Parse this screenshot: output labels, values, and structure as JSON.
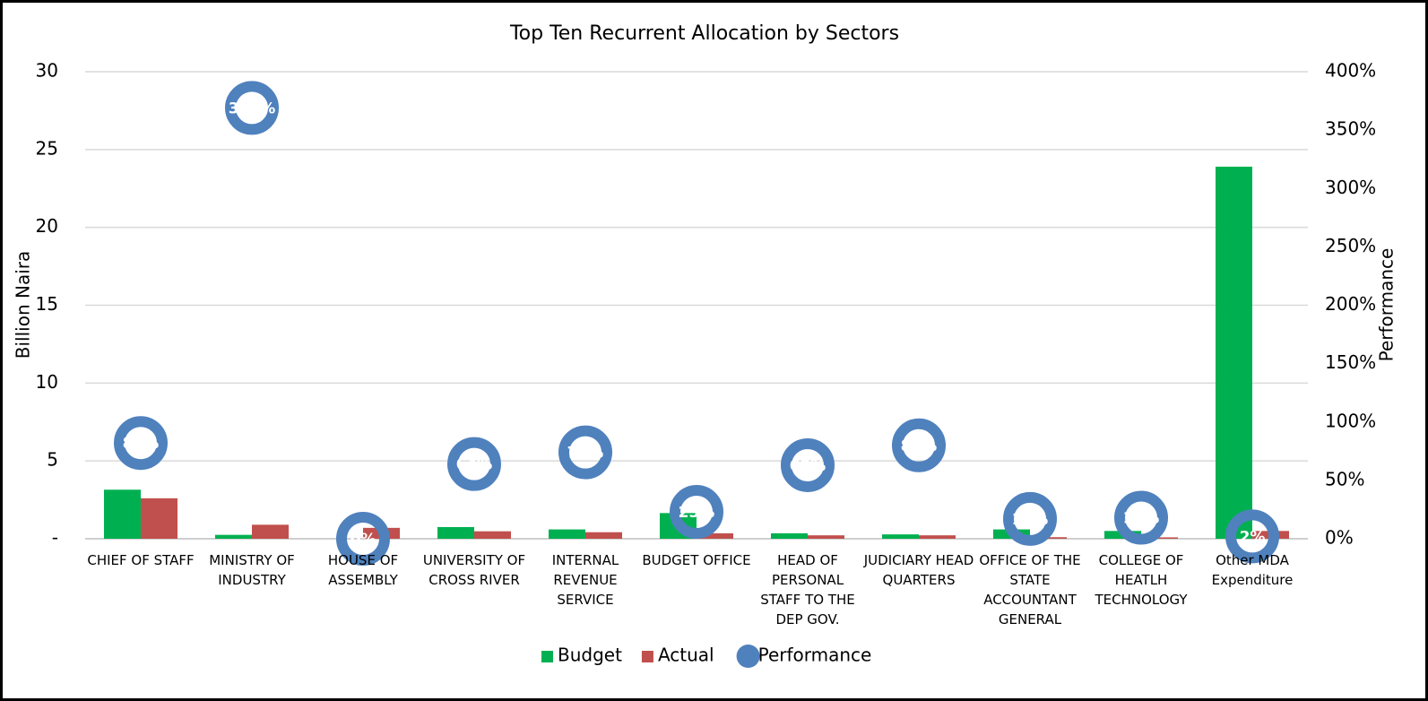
{
  "chart_data": {
    "type": "bar",
    "title": "Top Ten Recurrent Allocation by Sectors",
    "y_label": "Billion Naira",
    "y2_label": "Performance",
    "categories": [
      "CHIEF OF STAFF",
      "MINISTRY OF INDUSTRY",
      "HOUSE OF ASSEMBLY",
      "UNIVERSITY OF CROSS RIVER",
      "INTERNAL REVENUE SERVICE",
      "BUDGET OFFICE",
      "HEAD OF PERSONAL STAFF TO THE DEP GOV.",
      "JUDICIARY HEAD QUARTERS",
      "OFFICE OF THE STATE ACCOUNTANT GENERAL",
      "COLLEGE OF HEATLH TECHNOLOGY",
      "Other MDA Expenditure"
    ],
    "series": [
      {
        "name": "Budget",
        "color": "#00b050",
        "type": "bar",
        "values": [
          3.15,
          0.25,
          0,
          0.75,
          0.6,
          1.65,
          0.35,
          0.28,
          0.6,
          0.5,
          23.9
        ]
      },
      {
        "name": "Actual",
        "color": "#c0504d",
        "type": "bar",
        "values": [
          2.6,
          0.9,
          0.7,
          0.48,
          0.42,
          0.35,
          0.22,
          0.22,
          0.1,
          0.09,
          0.5
        ]
      },
      {
        "name": "Performance",
        "color": "#4f81bd",
        "type": "scatter",
        "axis": "y2",
        "values": [
          82,
          369,
          0,
          64,
          74,
          23,
          63,
          80,
          17,
          18,
          2
        ],
        "value_labels": [
          "82%",
          "369%",
          "0%",
          "64%",
          "74%",
          "23%",
          "63%",
          "80%",
          "17%",
          "18%",
          "2%"
        ]
      }
    ],
    "ylim": [
      0,
      30
    ],
    "yticks": [
      {
        "value": 0,
        "label": "-"
      },
      5,
      10,
      15,
      20,
      25,
      30
    ],
    "y2lim": [
      0,
      400
    ],
    "y2ticks": [
      {
        "value": 0,
        "label": "0%"
      },
      {
        "value": 50,
        "label": "50%"
      },
      {
        "value": 100,
        "label": "100%"
      },
      {
        "value": 150,
        "label": "150%"
      },
      {
        "value": 200,
        "label": "200%"
      },
      {
        "value": 250,
        "label": "250%"
      },
      {
        "value": 300,
        "label": "300%"
      },
      {
        "value": 350,
        "label": "350%"
      },
      {
        "value": 400,
        "label": "400%"
      }
    ],
    "grid": true,
    "legend": "bottom"
  }
}
